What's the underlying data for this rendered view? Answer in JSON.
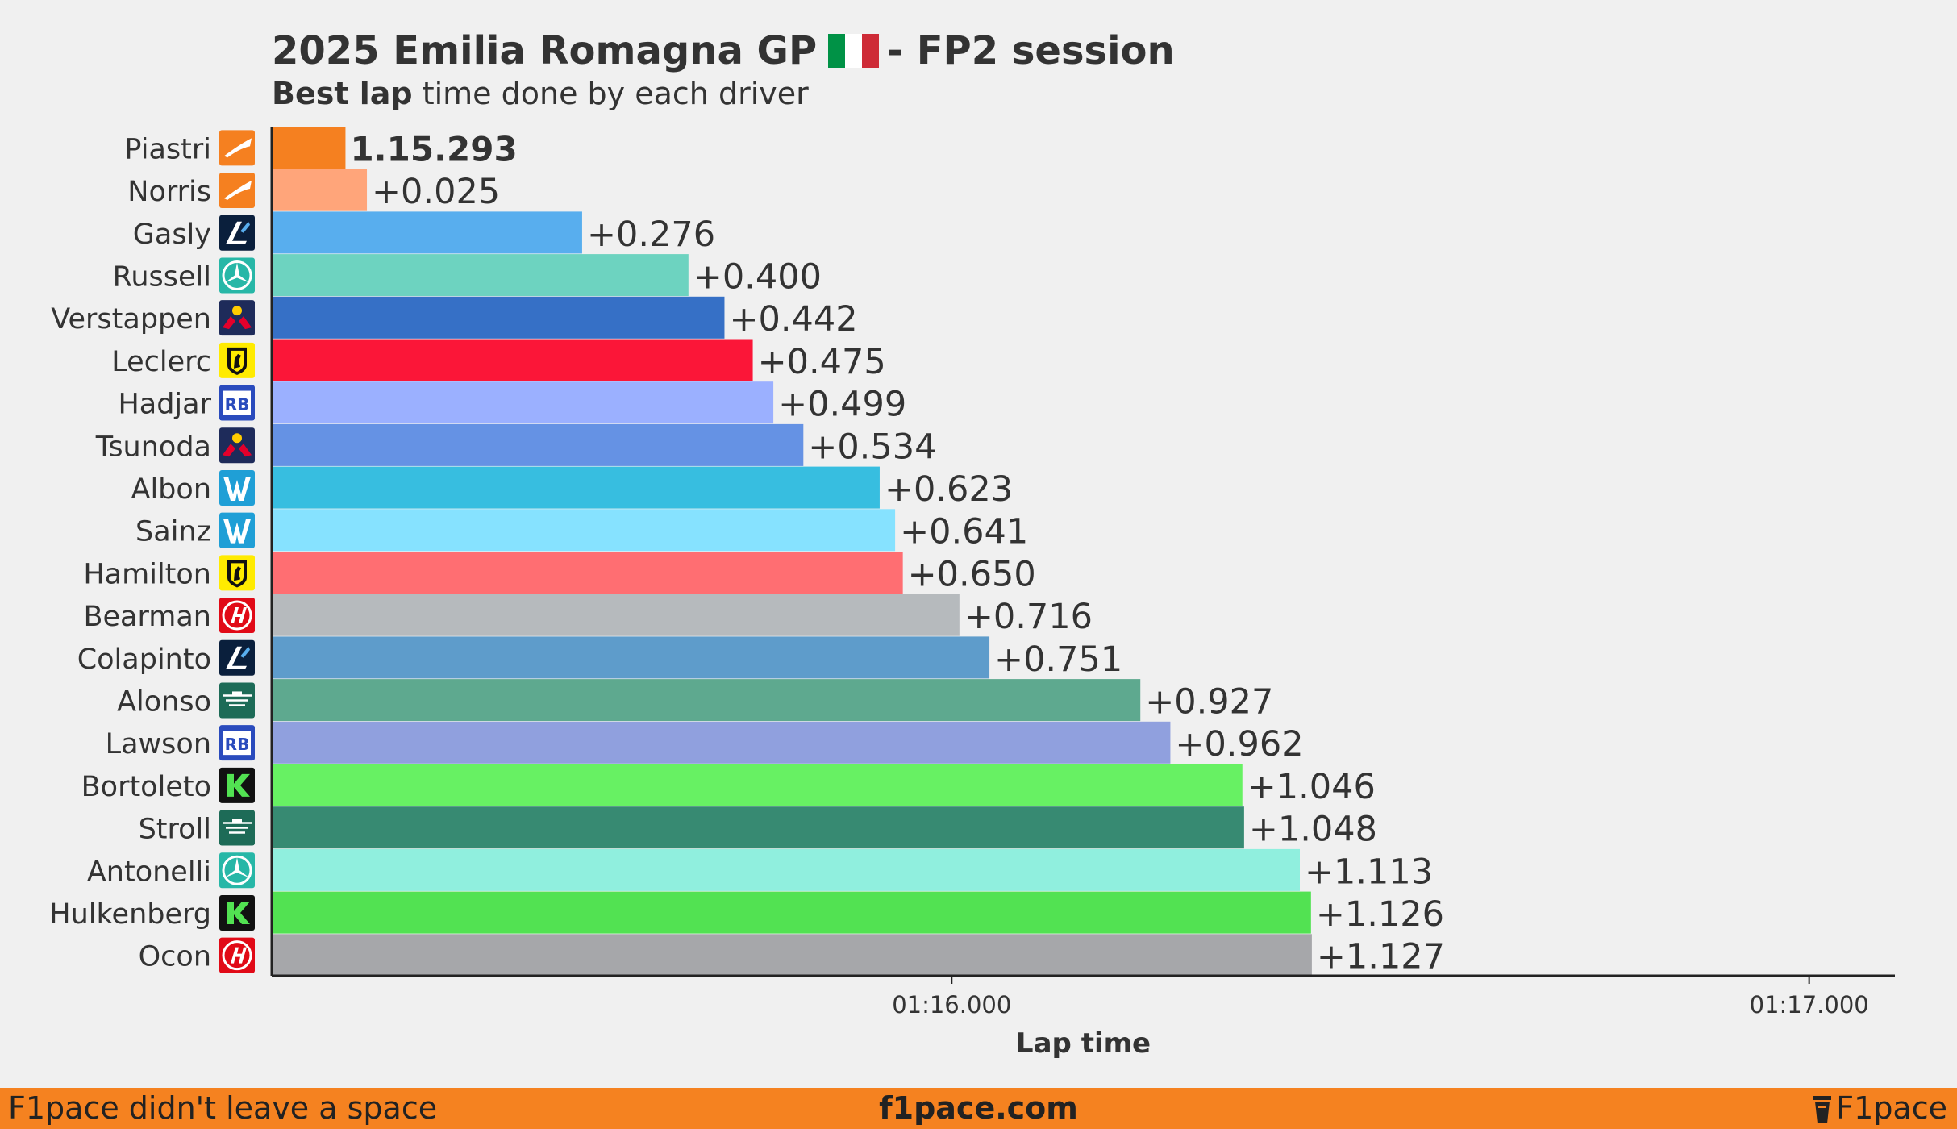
{
  "header": {
    "title_main": "2025 Emilia Romagna GP",
    "title_session": "- FP2 session",
    "subtitle_bold": "Best lap",
    "subtitle_rest": " time done by each driver",
    "flag_colors": [
      "#009246",
      "#ffffff",
      "#ce2b37"
    ]
  },
  "chart_data": {
    "type": "bar",
    "orientation": "horizontal",
    "xlabel": "Lap time",
    "x_ticks": [
      {
        "value": 76.0,
        "label": "01:16.000"
      },
      {
        "value": 77.0,
        "label": "01:17.000"
      }
    ],
    "xlim": [
      75.207,
      77.1
    ],
    "grid": false,
    "categories": [
      "Piastri",
      "Norris",
      "Gasly",
      "Russell",
      "Verstappen",
      "Leclerc",
      "Hadjar",
      "Tsunoda",
      "Albon",
      "Sainz",
      "Hamilton",
      "Bearman",
      "Colapinto",
      "Alonso",
      "Lawson",
      "Bortoleto",
      "Stroll",
      "Antonelli",
      "Hulkenberg",
      "Ocon"
    ],
    "values": [
      75.293,
      75.318,
      75.569,
      75.693,
      75.735,
      75.768,
      75.792,
      75.827,
      75.916,
      75.934,
      75.943,
      76.009,
      76.044,
      76.22,
      76.255,
      76.339,
      76.341,
      76.406,
      76.419,
      76.42
    ],
    "value_labels": [
      "1.15.293",
      "+0.025",
      "+0.276",
      "+0.400",
      "+0.442",
      "+0.475",
      "+0.499",
      "+0.534",
      "+0.623",
      "+0.641",
      "+0.650",
      "+0.716",
      "+0.751",
      "+0.927",
      "+0.962",
      "+1.046",
      "+1.048",
      "+1.113",
      "+1.126",
      "+1.127"
    ],
    "colors": [
      "#f58020",
      "#ffa57a",
      "#58aeee",
      "#6dd3c0",
      "#3670c6",
      "#fb1638",
      "#9bb0ff",
      "#6592e4",
      "#37bee0",
      "#86e2ff",
      "#ff6e72",
      "#b6babd",
      "#5e9ccb",
      "#5ea98f",
      "#90a0de",
      "#67f163",
      "#378a72",
      "#90efde",
      "#52e252",
      "#a6a7aa"
    ],
    "team_icons": [
      "mclaren-icon",
      "mclaren-icon",
      "alpine-icon",
      "mercedes-icon",
      "redbull-icon",
      "ferrari-icon",
      "racingbulls-icon",
      "redbull-icon",
      "williams-icon",
      "williams-icon",
      "ferrari-icon",
      "haas-icon",
      "alpine-icon",
      "astonmartin-icon",
      "racingbulls-icon",
      "sauber-icon",
      "astonmartin-icon",
      "mercedes-icon",
      "sauber-icon",
      "haas-icon"
    ]
  },
  "footer": {
    "left": "F1pace didn't leave a space",
    "center": "f1pace.com",
    "right": "F1pace"
  }
}
